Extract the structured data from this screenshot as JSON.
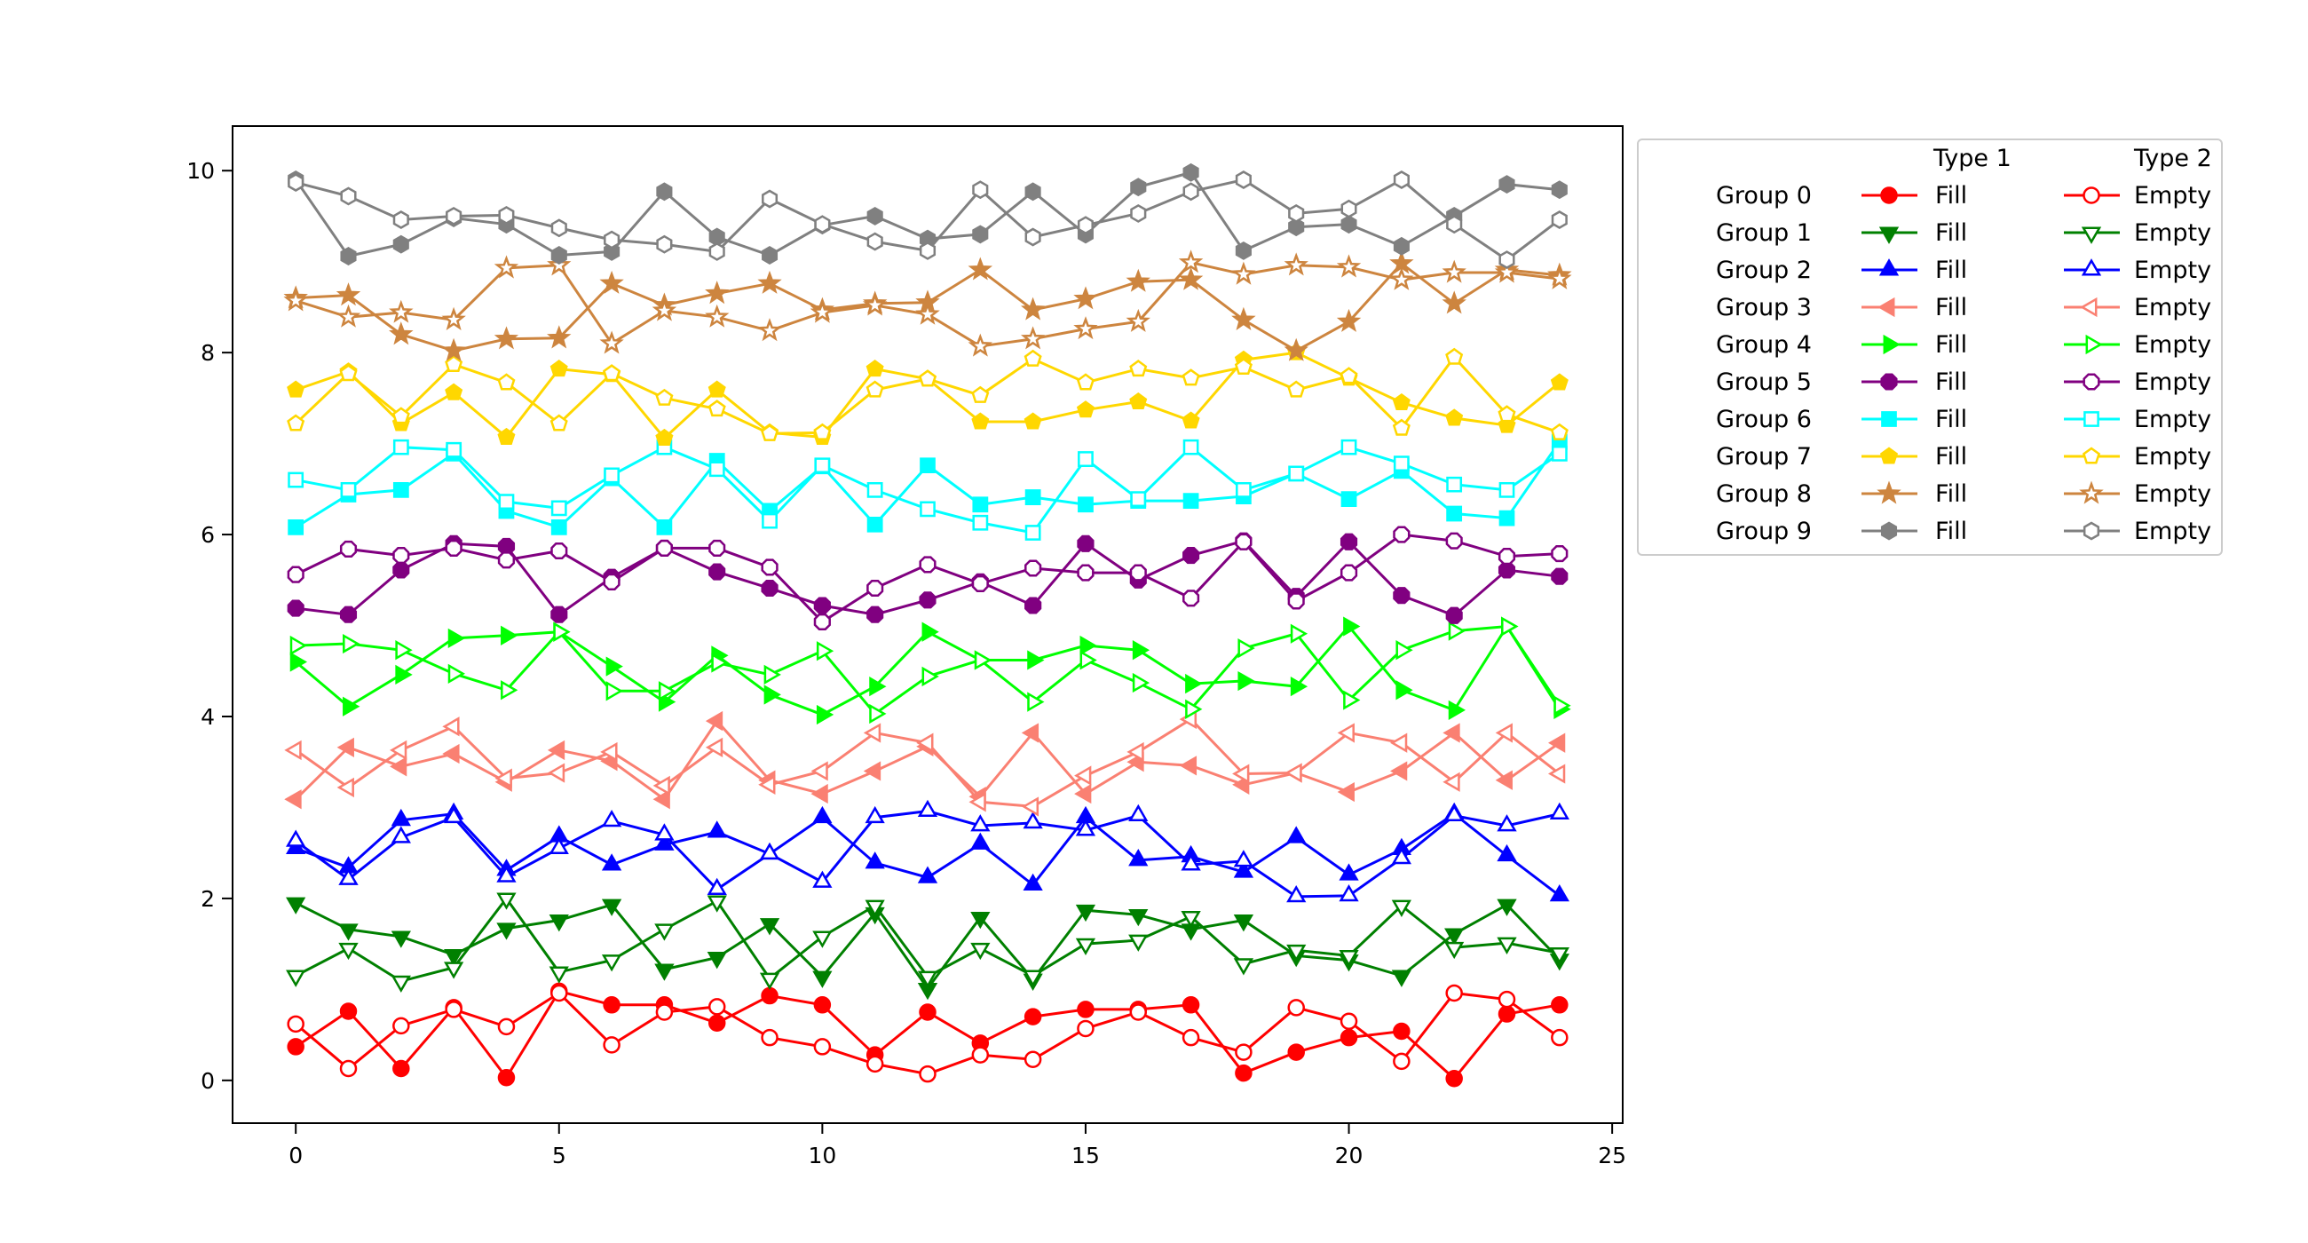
{
  "chart_data": {
    "type": "line",
    "title": "",
    "xlabel": "",
    "ylabel": "",
    "xlim": [
      -1.2,
      25.2
    ],
    "ylim": [
      -0.47,
      10.49
    ],
    "xticks": [
      0,
      5,
      10,
      15,
      20,
      25
    ],
    "yticks": [
      0,
      2,
      4,
      6,
      8,
      10
    ],
    "grid": false,
    "legend_placement": "outside-right-top",
    "legend": {
      "col_headers": [
        "Type 1",
        "Type 2"
      ],
      "fill_label": "Fill",
      "empty_label": "Empty"
    },
    "x": [
      0,
      1,
      2,
      3,
      4,
      5,
      6,
      7,
      8,
      9,
      10,
      11,
      12,
      13,
      14,
      15,
      16,
      17,
      18,
      19,
      20,
      21,
      22,
      23,
      24
    ],
    "groups": [
      {
        "name": "Group 0",
        "color": "#ff0000",
        "marker": "circle",
        "fill": [
          0.37,
          0.76,
          0.13,
          0.8,
          0.03,
          0.98,
          0.83,
          0.83,
          0.63,
          0.93,
          0.83,
          0.28,
          0.75,
          0.41,
          0.7,
          0.78,
          0.78,
          0.83,
          0.08,
          0.31,
          0.47,
          0.54,
          0.02,
          0.73,
          0.83
        ],
        "empty": [
          0.62,
          0.13,
          0.6,
          0.78,
          0.59,
          0.96,
          0.39,
          0.75,
          0.81,
          0.47,
          0.37,
          0.18,
          0.07,
          0.28,
          0.23,
          0.57,
          0.75,
          0.47,
          0.31,
          0.8,
          0.65,
          0.21,
          0.96,
          0.89,
          0.47
        ]
      },
      {
        "name": "Group 1",
        "color": "#008000",
        "marker": "triangle-down",
        "fill": [
          1.95,
          1.66,
          1.58,
          1.38,
          1.67,
          1.76,
          1.93,
          1.22,
          1.35,
          1.72,
          1.14,
          1.84,
          1.01,
          1.79,
          1.11,
          1.87,
          1.82,
          1.66,
          1.76,
          1.37,
          1.32,
          1.15,
          1.61,
          1.93,
          1.33
        ],
        "empty": [
          1.15,
          1.45,
          1.09,
          1.24,
          2.0,
          1.19,
          1.32,
          1.66,
          1.97,
          1.12,
          1.58,
          1.92,
          1.14,
          1.45,
          1.15,
          1.5,
          1.54,
          1.8,
          1.28,
          1.43,
          1.37,
          1.92,
          1.46,
          1.51,
          1.4
        ]
      },
      {
        "name": "Group 2",
        "color": "#0000ff",
        "marker": "triangle-up",
        "fill": [
          2.55,
          2.34,
          2.86,
          2.93,
          2.31,
          2.68,
          2.37,
          2.59,
          2.73,
          2.49,
          2.89,
          2.39,
          2.23,
          2.6,
          2.15,
          2.89,
          2.42,
          2.46,
          2.29,
          2.67,
          2.26,
          2.54,
          2.93,
          2.47,
          2.03
        ],
        "empty": [
          2.63,
          2.21,
          2.67,
          2.89,
          2.24,
          2.55,
          2.85,
          2.7,
          2.1,
          2.49,
          2.18,
          2.89,
          2.96,
          2.8,
          2.83,
          2.75,
          2.91,
          2.37,
          2.41,
          2.02,
          2.03,
          2.44,
          2.91,
          2.8,
          2.93
        ]
      },
      {
        "name": "Group 3",
        "color": "#fa8072",
        "marker": "triangle-left",
        "fill": [
          3.09,
          3.66,
          3.45,
          3.59,
          3.28,
          3.63,
          3.51,
          3.09,
          3.95,
          3.3,
          3.15,
          3.4,
          3.67,
          3.12,
          3.82,
          3.15,
          3.5,
          3.46,
          3.25,
          3.38,
          3.17,
          3.4,
          3.82,
          3.3,
          3.71
        ],
        "empty": [
          3.63,
          3.22,
          3.63,
          3.89,
          3.32,
          3.38,
          3.61,
          3.24,
          3.66,
          3.25,
          3.4,
          3.82,
          3.71,
          3.06,
          3.01,
          3.35,
          3.61,
          3.97,
          3.37,
          3.38,
          3.82,
          3.71,
          3.28,
          3.82,
          3.37
        ]
      },
      {
        "name": "Group 4",
        "color": "#00ff00",
        "marker": "triangle-right",
        "fill": [
          4.6,
          4.11,
          4.46,
          4.86,
          4.89,
          4.93,
          4.55,
          4.16,
          4.67,
          4.24,
          4.02,
          4.33,
          4.93,
          4.62,
          4.62,
          4.78,
          4.73,
          4.36,
          4.39,
          4.33,
          4.99,
          4.29,
          4.07,
          4.99,
          4.08
        ],
        "empty": [
          4.78,
          4.8,
          4.73,
          4.47,
          4.29,
          4.93,
          4.28,
          4.28,
          4.59,
          4.46,
          4.72,
          4.03,
          4.44,
          4.62,
          4.16,
          4.62,
          4.37,
          4.08,
          4.75,
          4.91,
          4.18,
          4.73,
          4.94,
          4.99,
          4.12
        ]
      },
      {
        "name": "Group 5",
        "color": "#800080",
        "marker": "octagon",
        "fill": [
          5.19,
          5.12,
          5.61,
          5.9,
          5.87,
          5.12,
          5.53,
          5.85,
          5.59,
          5.41,
          5.22,
          5.12,
          5.28,
          5.48,
          5.22,
          5.9,
          5.5,
          5.77,
          5.93,
          5.32,
          5.92,
          5.33,
          5.11,
          5.61,
          5.54
        ],
        "empty": [
          5.56,
          5.84,
          5.77,
          5.85,
          5.72,
          5.82,
          5.48,
          5.85,
          5.85,
          5.64,
          5.04,
          5.41,
          5.67,
          5.46,
          5.63,
          5.58,
          5.58,
          5.3,
          5.92,
          5.27,
          5.58,
          6.0,
          5.93,
          5.76,
          5.79
        ]
      },
      {
        "name": "Group 6",
        "color": "#00ffff",
        "marker": "square",
        "fill": [
          6.08,
          6.44,
          6.49,
          6.89,
          6.26,
          6.08,
          6.62,
          6.08,
          6.81,
          6.26,
          6.75,
          6.11,
          6.76,
          6.33,
          6.41,
          6.33,
          6.37,
          6.37,
          6.42,
          6.67,
          6.39,
          6.7,
          6.23,
          6.18,
          7.02
        ],
        "empty": [
          6.6,
          6.49,
          6.96,
          6.93,
          6.36,
          6.29,
          6.65,
          6.96,
          6.72,
          6.15,
          6.76,
          6.49,
          6.28,
          6.13,
          6.02,
          6.83,
          6.39,
          6.96,
          6.49,
          6.67,
          6.96,
          6.78,
          6.55,
          6.49,
          6.89
        ]
      },
      {
        "name": "Group 7",
        "color": "#ffd700",
        "marker": "pentagon",
        "fill": [
          7.59,
          7.79,
          7.22,
          7.56,
          7.07,
          7.82,
          7.76,
          7.06,
          7.59,
          7.12,
          7.07,
          7.82,
          7.71,
          7.24,
          7.24,
          7.37,
          7.46,
          7.25,
          7.92,
          8.0,
          7.72,
          7.45,
          7.28,
          7.2,
          7.67
        ],
        "empty": [
          7.22,
          7.77,
          7.3,
          7.87,
          7.67,
          7.22,
          7.77,
          7.5,
          7.38,
          7.11,
          7.12,
          7.59,
          7.71,
          7.53,
          7.93,
          7.67,
          7.82,
          7.72,
          7.84,
          7.59,
          7.74,
          7.17,
          7.95,
          7.32,
          7.12
        ]
      },
      {
        "name": "Group 8",
        "color": "#cd853f",
        "marker": "star",
        "fill": [
          8.6,
          8.63,
          8.2,
          8.02,
          8.15,
          8.16,
          8.76,
          8.52,
          8.65,
          8.76,
          8.47,
          8.54,
          8.55,
          8.91,
          8.47,
          8.59,
          8.78,
          8.8,
          8.36,
          8.02,
          8.34,
          8.98,
          8.54,
          8.91,
          8.85
        ],
        "empty": [
          8.57,
          8.39,
          8.44,
          8.36,
          8.93,
          8.96,
          8.1,
          8.46,
          8.39,
          8.24,
          8.44,
          8.52,
          8.42,
          8.07,
          8.15,
          8.26,
          8.34,
          8.99,
          8.86,
          8.96,
          8.94,
          8.8,
          8.88,
          8.88,
          8.81
        ]
      },
      {
        "name": "Group 9",
        "color": "#808080",
        "marker": "hexagon",
        "fill": [
          9.9,
          9.06,
          9.19,
          9.48,
          9.41,
          9.07,
          9.11,
          9.77,
          9.27,
          9.07,
          9.4,
          9.5,
          9.25,
          9.3,
          9.77,
          9.3,
          9.82,
          9.98,
          9.12,
          9.38,
          9.41,
          9.17,
          9.5,
          9.85,
          9.79
        ],
        "empty": [
          9.87,
          9.72,
          9.46,
          9.5,
          9.51,
          9.37,
          9.24,
          9.19,
          9.11,
          9.69,
          9.41,
          9.22,
          9.12,
          9.79,
          9.27,
          9.4,
          9.53,
          9.77,
          9.9,
          9.53,
          9.58,
          9.9,
          9.41,
          9.02,
          9.46
        ]
      }
    ]
  }
}
